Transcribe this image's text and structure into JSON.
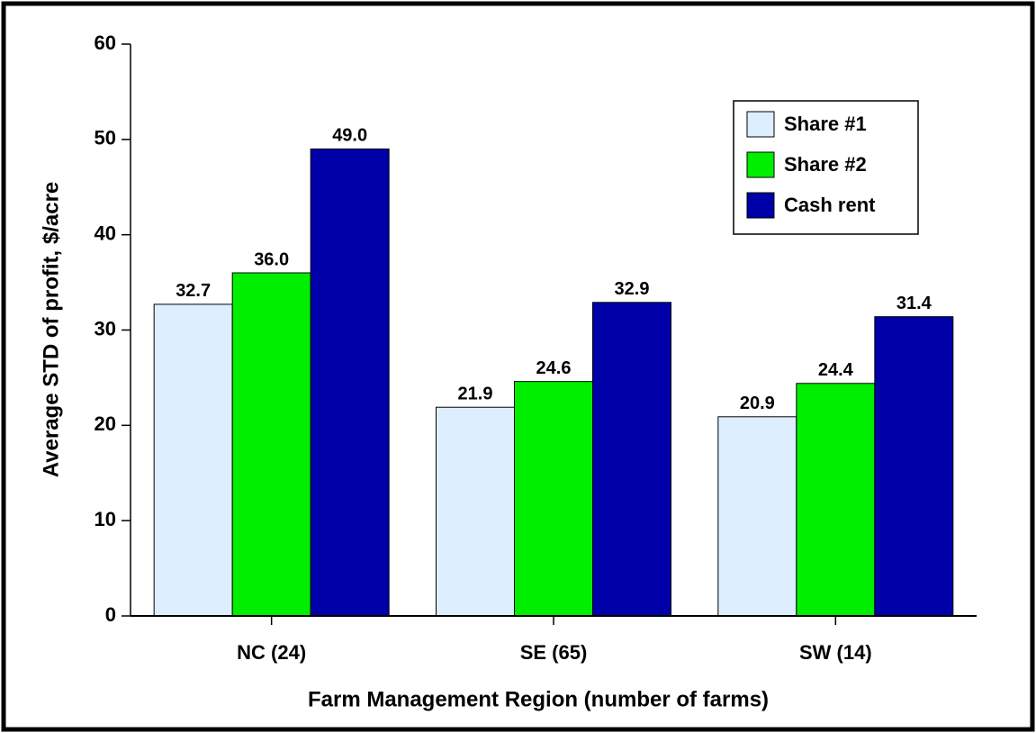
{
  "chart_data": {
    "type": "bar",
    "x_label": "Farm Management Region (number of farms)",
    "y_label": "Average STD of profit, $/acre",
    "categories": [
      "NC (24)",
      "SE (65)",
      "SW (14)"
    ],
    "series": [
      {
        "name": "Share #1",
        "color": "#ddeeff",
        "values": [
          32.7,
          21.9,
          20.9
        ],
        "value_labels": [
          "32.7",
          "21.9",
          "20.9"
        ]
      },
      {
        "name": "Share #2",
        "color": "#00ee00",
        "values": [
          36.0,
          24.6,
          24.4
        ],
        "value_labels": [
          "36.0",
          "24.6",
          "24.4"
        ]
      },
      {
        "name": "Cash rent",
        "color": "#0000a8",
        "values": [
          49.0,
          32.9,
          31.4
        ],
        "value_labels": [
          "49.0",
          "32.9",
          "31.4"
        ]
      }
    ],
    "ylim": [
      0,
      60
    ],
    "yticks": [
      0,
      10,
      20,
      30,
      40,
      50,
      60
    ],
    "legend": "upper right"
  }
}
